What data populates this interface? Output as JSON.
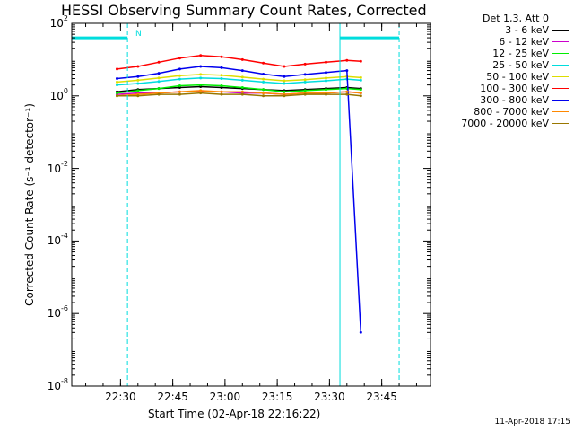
{
  "header": {
    "title": "HESSI Observing Summary Count Rates, Corrected",
    "stamp": "11-Apr-2018 17:15"
  },
  "legend": {
    "heading": "Det 1,3, Att 0"
  },
  "flags": {
    "saa_label": "N"
  },
  "colors": {
    "axes": "#000000",
    "flag": "#00dddd"
  },
  "chart_data": {
    "type": "line",
    "title": "HESSI Observing Summary Count Rates, Corrected",
    "xlabel": "Start Time (02-Apr-18 22:16:22)",
    "ylabel": "Corrected Count Rate (s⁻¹ detector⁻¹)",
    "x_unit": "minutes of day",
    "xlim": [
      1336,
      1439
    ],
    "ylim": [
      1e-08,
      100
    ],
    "y_scale": "log",
    "x_ticks": [
      {
        "label": "22:30",
        "value": 1350
      },
      {
        "label": "22:45",
        "value": 1365
      },
      {
        "label": "23:00",
        "value": 1380
      },
      {
        "label": "23:15",
        "value": 1395
      },
      {
        "label": "23:30",
        "value": 1410
      },
      {
        "label": "23:45",
        "value": 1425
      }
    ],
    "y_ticks": [
      {
        "base": "10",
        "exp": "2",
        "value": 100
      },
      {
        "base": "10",
        "exp": "0",
        "value": 1
      },
      {
        "base": "10",
        "exp": "-2",
        "value": 0.01
      },
      {
        "base": "10",
        "exp": "-4",
        "value": 0.0001
      },
      {
        "base": "10",
        "exp": "-6",
        "value": 1e-06
      },
      {
        "base": "10",
        "exp": "-8",
        "value": 1e-08
      }
    ],
    "x": [
      1349,
      1355,
      1361,
      1367,
      1373,
      1379,
      1385,
      1391,
      1397,
      1403,
      1409,
      1415,
      1419
    ],
    "series": [
      {
        "name": "3 - 6 keV",
        "color": "#000000",
        "values": [
          1.3,
          1.5,
          1.6,
          1.7,
          1.8,
          1.7,
          1.6,
          1.5,
          1.4,
          1.5,
          1.6,
          1.7,
          1.6
        ]
      },
      {
        "name": "6 - 12 keV",
        "color": "#cc00cc",
        "values": [
          1.1,
          1.2,
          1.2,
          1.3,
          1.3,
          1.3,
          1.2,
          1.2,
          1.1,
          1.2,
          1.2,
          1.3,
          1.2
        ]
      },
      {
        "name": "12 - 25 keV",
        "color": "#00ee00",
        "values": [
          1.2,
          1.4,
          1.6,
          1.9,
          2.0,
          1.9,
          1.7,
          1.5,
          1.3,
          1.4,
          1.5,
          1.6,
          1.5
        ]
      },
      {
        "name": "25 - 50 keV",
        "color": "#00dddd",
        "values": [
          2.0,
          2.2,
          2.5,
          2.9,
          3.1,
          3.0,
          2.7,
          2.4,
          2.2,
          2.4,
          2.6,
          2.9,
          2.7
        ]
      },
      {
        "name": "50 - 100 keV",
        "color": "#dddd00",
        "values": [
          2.4,
          2.7,
          3.1,
          3.6,
          3.9,
          3.7,
          3.3,
          2.9,
          2.6,
          2.8,
          3.1,
          3.4,
          3.2
        ]
      },
      {
        "name": "100 - 300 keV",
        "color": "#ff0000",
        "values": [
          5.5,
          6.5,
          8.5,
          11,
          13,
          12,
          10,
          8,
          6.5,
          7.5,
          8.5,
          9.5,
          9
        ]
      },
      {
        "name": "300 - 800 keV",
        "color": "#0000ee",
        "values": [
          3.0,
          3.4,
          4.2,
          5.5,
          6.5,
          6.0,
          5.0,
          4.0,
          3.4,
          3.9,
          4.4,
          5.0,
          3e-07
        ]
      },
      {
        "name": "800 - 7000 keV",
        "color": "#ff8800",
        "values": [
          1.0,
          1.1,
          1.2,
          1.3,
          1.4,
          1.3,
          1.3,
          1.2,
          1.1,
          1.2,
          1.2,
          1.3,
          1.2
        ]
      },
      {
        "name": "7000 - 20000 keV",
        "color": "#997700",
        "values": [
          1.0,
          1.0,
          1.1,
          1.1,
          1.2,
          1.1,
          1.1,
          1.0,
          1.0,
          1.1,
          1.1,
          1.1,
          1.0
        ]
      }
    ],
    "flag_intervals": [
      {
        "start": 1336,
        "end": 1352
      },
      {
        "start": 1413,
        "end": 1430
      }
    ],
    "flag_level": 40,
    "legend_placement": "right",
    "grid": false
  }
}
